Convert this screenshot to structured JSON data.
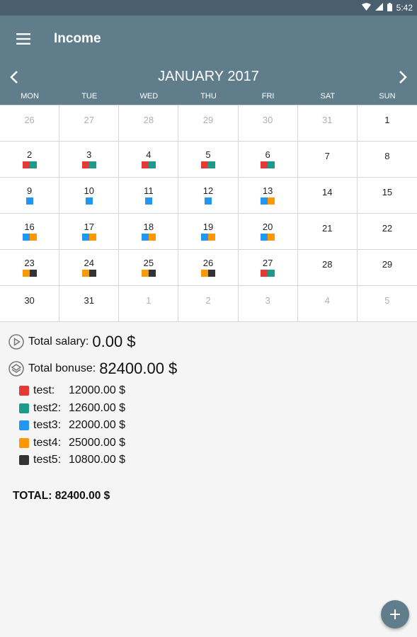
{
  "status_bar": {
    "time": "5:42",
    "icons": [
      "wifi-icon",
      "signal-icon",
      "battery-icon"
    ]
  },
  "app_bar": {
    "title": "Income",
    "menu_icon": "hamburger-menu-icon"
  },
  "calendar": {
    "month_title": "JANUARY 2017",
    "prev_icon": "chevron-left-icon",
    "next_icon": "chevron-right-icon",
    "weekdays": [
      "MON",
      "TUE",
      "WED",
      "THU",
      "FRI",
      "SAT",
      "SUN"
    ],
    "colors": {
      "test": "#e53935",
      "test2": "#1e9a8a",
      "test3": "#2196f3",
      "test4": "#ff9800",
      "test5": "#333333"
    },
    "weeks": [
      [
        {
          "day": "26",
          "muted": true,
          "marks": []
        },
        {
          "day": "27",
          "muted": true,
          "marks": []
        },
        {
          "day": "28",
          "muted": true,
          "marks": []
        },
        {
          "day": "29",
          "muted": true,
          "marks": []
        },
        {
          "day": "30",
          "muted": true,
          "marks": []
        },
        {
          "day": "31",
          "muted": true,
          "marks": []
        },
        {
          "day": "1",
          "muted": false,
          "marks": []
        }
      ],
      [
        {
          "day": "2",
          "muted": false,
          "marks": [
            "test",
            "test2"
          ]
        },
        {
          "day": "3",
          "muted": false,
          "marks": [
            "test",
            "test2"
          ]
        },
        {
          "day": "4",
          "muted": false,
          "marks": [
            "test",
            "test2"
          ]
        },
        {
          "day": "5",
          "muted": false,
          "marks": [
            "test",
            "test2"
          ]
        },
        {
          "day": "6",
          "muted": false,
          "marks": [
            "test",
            "test2"
          ]
        },
        {
          "day": "7",
          "muted": false,
          "marks": []
        },
        {
          "day": "8",
          "muted": false,
          "marks": []
        }
      ],
      [
        {
          "day": "9",
          "muted": false,
          "marks": [
            "test3"
          ]
        },
        {
          "day": "10",
          "muted": false,
          "marks": [
            "test3"
          ]
        },
        {
          "day": "11",
          "muted": false,
          "marks": [
            "test3"
          ]
        },
        {
          "day": "12",
          "muted": false,
          "marks": [
            "test3"
          ]
        },
        {
          "day": "13",
          "muted": false,
          "marks": [
            "test3",
            "test4"
          ]
        },
        {
          "day": "14",
          "muted": false,
          "marks": []
        },
        {
          "day": "15",
          "muted": false,
          "marks": []
        }
      ],
      [
        {
          "day": "16",
          "muted": false,
          "marks": [
            "test3",
            "test4"
          ]
        },
        {
          "day": "17",
          "muted": false,
          "marks": [
            "test3",
            "test4"
          ]
        },
        {
          "day": "18",
          "muted": false,
          "marks": [
            "test3",
            "test4"
          ]
        },
        {
          "day": "19",
          "muted": false,
          "marks": [
            "test3",
            "test4"
          ]
        },
        {
          "day": "20",
          "muted": false,
          "marks": [
            "test3",
            "test4"
          ]
        },
        {
          "day": "21",
          "muted": false,
          "marks": []
        },
        {
          "day": "22",
          "muted": false,
          "marks": []
        }
      ],
      [
        {
          "day": "23",
          "muted": false,
          "marks": [
            "test4",
            "test5"
          ]
        },
        {
          "day": "24",
          "muted": false,
          "marks": [
            "test4",
            "test5"
          ]
        },
        {
          "day": "25",
          "muted": false,
          "marks": [
            "test4",
            "test5"
          ]
        },
        {
          "day": "26",
          "muted": false,
          "marks": [
            "test4",
            "test5"
          ]
        },
        {
          "day": "27",
          "muted": false,
          "marks": [
            "test",
            "test2"
          ]
        },
        {
          "day": "28",
          "muted": false,
          "marks": []
        },
        {
          "day": "29",
          "muted": false,
          "marks": []
        }
      ],
      [
        {
          "day": "30",
          "muted": false,
          "marks": []
        },
        {
          "day": "31",
          "muted": false,
          "marks": []
        },
        {
          "day": "1",
          "muted": true,
          "marks": []
        },
        {
          "day": "2",
          "muted": true,
          "marks": []
        },
        {
          "day": "3",
          "muted": true,
          "marks": []
        },
        {
          "day": "4",
          "muted": true,
          "marks": []
        },
        {
          "day": "5",
          "muted": true,
          "marks": []
        }
      ]
    ]
  },
  "summary": {
    "salary_label": "Total salary:",
    "salary_value": "0.00 $",
    "salary_icon": "play-circle-icon",
    "bonus_label": "Total bonuse:",
    "bonus_value": "82400.00 $",
    "bonus_icon": "gift-circle-icon",
    "bonuses": [
      {
        "name": "test:",
        "amount": "12000.00 $",
        "color": "#e53935"
      },
      {
        "name": "test2:",
        "amount": "12600.00 $",
        "color": "#1e9a8a"
      },
      {
        "name": "test3:",
        "amount": "22000.00 $",
        "color": "#2196f3"
      },
      {
        "name": "test4:",
        "amount": "25000.00 $",
        "color": "#ff9800"
      },
      {
        "name": "test5:",
        "amount": "10800.00 $",
        "color": "#333333"
      }
    ],
    "total_label": "TOTAL: 82400.00 $"
  },
  "fab": {
    "icon": "plus-icon"
  },
  "theme": {
    "primary": "#607d8b",
    "status_bar": "#4a5f6d"
  }
}
